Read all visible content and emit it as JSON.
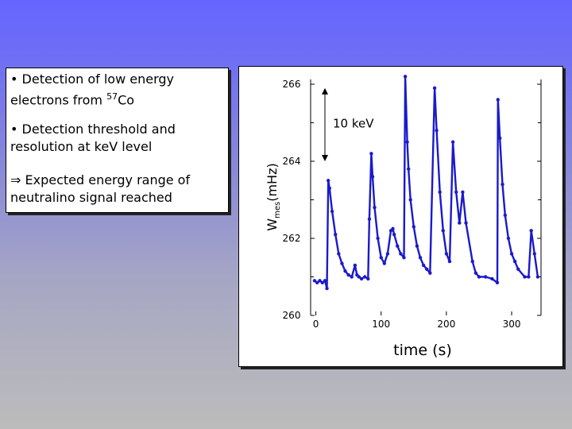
{
  "bullets": {
    "line1a": "• Detection of low energy",
    "line1b_pre": "electrons from ",
    "line1b_sup": "57",
    "line1b_post": "Co",
    "line2a": "• Detection threshold and",
    "line2b": "resolution at keV level",
    "line3a": "⇒ Expected energy range of",
    "line3b": "neutralino signal reached"
  },
  "chart_data": {
    "type": "line",
    "xlabel": "time (s)",
    "ylabel_main": "W",
    "ylabel_sub": "mes",
    "ylabel_unit": "(mHz)",
    "xlim": [
      -8,
      345
    ],
    "ylim": [
      260,
      266
    ],
    "xticks": [
      "0",
      "100",
      "200",
      "300"
    ],
    "xtick_values": [
      0,
      100,
      200,
      300
    ],
    "yticks": [
      "260",
      "262",
      "264",
      "266"
    ],
    "ytick_values": [
      260,
      262,
      264,
      266
    ],
    "annotation": "10 keV",
    "annotation_arrow": [
      264,
      265.9
    ],
    "color": "#1a1acc",
    "series": [
      {
        "x": [
          -2,
          2,
          6,
          10,
          14,
          17,
          19,
          21,
          25,
          30,
          35,
          40,
          45,
          50,
          55,
          60,
          63,
          66,
          70,
          75,
          80,
          82,
          85,
          87,
          90,
          95,
          100,
          105,
          110,
          115,
          118,
          120,
          125,
          130,
          135,
          137,
          140,
          142,
          145,
          150,
          155,
          160,
          165,
          170,
          175,
          182,
          185,
          190,
          195,
          200,
          205,
          210,
          215,
          220,
          225,
          230,
          240,
          245,
          250,
          260,
          270,
          278,
          279,
          282,
          286,
          290,
          295,
          300,
          305,
          310,
          320,
          326,
          330,
          335,
          340
        ],
        "y": [
          260.9,
          260.85,
          260.9,
          260.85,
          260.9,
          260.7,
          263.5,
          263.3,
          262.7,
          262.1,
          261.6,
          261.35,
          261.15,
          261.05,
          261.0,
          261.3,
          261.05,
          261.0,
          260.95,
          261.0,
          260.95,
          262.5,
          264.2,
          263.6,
          262.8,
          262.0,
          261.5,
          261.35,
          261.6,
          262.2,
          262.25,
          262.1,
          261.8,
          261.6,
          261.5,
          266.2,
          264.5,
          263.8,
          263.0,
          262.3,
          261.8,
          261.5,
          261.3,
          261.2,
          261.1,
          265.9,
          264.8,
          263.2,
          262.2,
          261.6,
          261.4,
          264.5,
          263.2,
          262.4,
          263.2,
          262.4,
          261.4,
          261.1,
          261.0,
          261.0,
          260.95,
          260.85,
          265.6,
          264.6,
          263.4,
          262.6,
          262.0,
          261.6,
          261.4,
          261.2,
          261.0,
          261.0,
          262.2,
          261.6,
          261.0
        ]
      }
    ]
  }
}
